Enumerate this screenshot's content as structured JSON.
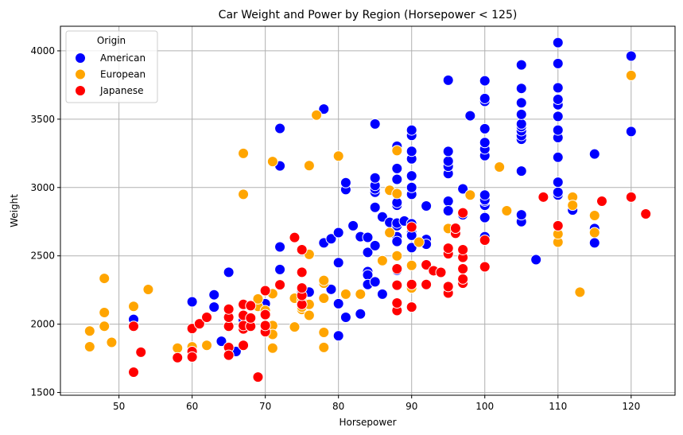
{
  "chart_data": {
    "type": "scatter",
    "title": "Car Weight and Power by Region (Horsepower < 125)",
    "xlabel": "Horsepower",
    "ylabel": "Weight",
    "xlim": [
      42,
      126
    ],
    "ylim": [
      1480,
      4180
    ],
    "xticks": [
      50,
      60,
      70,
      80,
      90,
      100,
      110,
      120
    ],
    "yticks": [
      1500,
      2000,
      2500,
      3000,
      3500,
      4000
    ],
    "grid": true,
    "legend": {
      "title": "Origin",
      "placement": "top-left"
    },
    "series": [
      {
        "name": "American",
        "color": "#0000ff",
        "points": [
          [
            52,
            2035
          ],
          [
            60,
            2164
          ],
          [
            63,
            2125
          ],
          [
            63,
            2215
          ],
          [
            64,
            1875
          ],
          [
            65,
            2380
          ],
          [
            65,
            2050
          ],
          [
            66,
            1800
          ],
          [
            67,
            2030
          ],
          [
            68,
            2045
          ],
          [
            70,
            2150
          ],
          [
            72,
            2565
          ],
          [
            72,
            2400
          ],
          [
            72,
            3158
          ],
          [
            72,
            3432
          ],
          [
            75,
            2230
          ],
          [
            76,
            2235
          ],
          [
            78,
            2595
          ],
          [
            78,
            3574
          ],
          [
            79,
            2625
          ],
          [
            79,
            2255
          ],
          [
            80,
            2150
          ],
          [
            80,
            2670
          ],
          [
            80,
            2450
          ],
          [
            80,
            1915
          ],
          [
            81,
            2050
          ],
          [
            81,
            2985
          ],
          [
            81,
            3035
          ],
          [
            82,
            2720
          ],
          [
            83,
            2075
          ],
          [
            83,
            2640
          ],
          [
            84,
            2525
          ],
          [
            84,
            2635
          ],
          [
            84,
            2385
          ],
          [
            84,
            2360
          ],
          [
            84,
            2290
          ],
          [
            85,
            2965
          ],
          [
            85,
            2990
          ],
          [
            85,
            3015
          ],
          [
            85,
            3070
          ],
          [
            85,
            3465
          ],
          [
            85,
            2855
          ],
          [
            85,
            2575
          ],
          [
            85,
            2310
          ],
          [
            86,
            2785
          ],
          [
            86,
            2220
          ],
          [
            87,
            2745
          ],
          [
            88,
            2720
          ],
          [
            88,
            2740
          ],
          [
            88,
            2870
          ],
          [
            88,
            3060
          ],
          [
            88,
            3139
          ],
          [
            88,
            3302
          ],
          [
            88,
            2640
          ],
          [
            88,
            2395
          ],
          [
            88,
            2605
          ],
          [
            88,
            2890
          ],
          [
            89,
            2755
          ],
          [
            90,
            2670
          ],
          [
            90,
            2735
          ],
          [
            90,
            2950
          ],
          [
            90,
            3000
          ],
          [
            90,
            3085
          ],
          [
            90,
            3210
          ],
          [
            90,
            3265
          ],
          [
            90,
            3381
          ],
          [
            90,
            3420
          ],
          [
            90,
            2650
          ],
          [
            90,
            2560
          ],
          [
            90,
            2735
          ],
          [
            92,
            2620
          ],
          [
            92,
            2585
          ],
          [
            92,
            2865
          ],
          [
            95,
            2900
          ],
          [
            95,
            3102
          ],
          [
            95,
            3155
          ],
          [
            95,
            3193
          ],
          [
            95,
            3264
          ],
          [
            95,
            2830
          ],
          [
            95,
            3785
          ],
          [
            97,
            2300
          ],
          [
            97,
            2990
          ],
          [
            97,
            2800
          ],
          [
            98,
            3525
          ],
          [
            100,
            2870
          ],
          [
            100,
            2900
          ],
          [
            100,
            2910
          ],
          [
            100,
            2945
          ],
          [
            100,
            3233
          ],
          [
            100,
            3282
          ],
          [
            100,
            3329
          ],
          [
            100,
            3430
          ],
          [
            100,
            3630
          ],
          [
            100,
            3651
          ],
          [
            100,
            3781
          ],
          [
            100,
            2640
          ],
          [
            100,
            2780
          ],
          [
            105,
            2750
          ],
          [
            105,
            2800
          ],
          [
            105,
            3120
          ],
          [
            105,
            3353
          ],
          [
            105,
            3380
          ],
          [
            105,
            3415
          ],
          [
            105,
            3445
          ],
          [
            105,
            3465
          ],
          [
            105,
            3535
          ],
          [
            105,
            3620
          ],
          [
            105,
            3725
          ],
          [
            105,
            3897
          ],
          [
            107,
            2472
          ],
          [
            110,
            2945
          ],
          [
            110,
            2965
          ],
          [
            110,
            3039
          ],
          [
            110,
            3221
          ],
          [
            110,
            3365
          ],
          [
            110,
            3420
          ],
          [
            110,
            3520
          ],
          [
            110,
            3605
          ],
          [
            110,
            3645
          ],
          [
            110,
            3730
          ],
          [
            110,
            3907
          ],
          [
            110,
            4060
          ],
          [
            112,
            2835
          ],
          [
            115,
            2595
          ],
          [
            115,
            2700
          ],
          [
            115,
            3245
          ],
          [
            120,
            3410
          ],
          [
            120,
            3962
          ]
        ]
      },
      {
        "name": "European",
        "color": "#ffa500",
        "points": [
          [
            46,
            1835
          ],
          [
            46,
            1950
          ],
          [
            48,
            2335
          ],
          [
            48,
            2085
          ],
          [
            48,
            1985
          ],
          [
            49,
            1867
          ],
          [
            52,
            2130
          ],
          [
            54,
            2254
          ],
          [
            58,
            1825
          ],
          [
            60,
            1834
          ],
          [
            62,
            1845
          ],
          [
            67,
            3250
          ],
          [
            67,
            2950
          ],
          [
            69,
            2130
          ],
          [
            69,
            2185
          ],
          [
            70,
            2100
          ],
          [
            71,
            2223
          ],
          [
            71,
            1990
          ],
          [
            71,
            1925
          ],
          [
            71,
            1825
          ],
          [
            71,
            3190
          ],
          [
            74,
            1980
          ],
          [
            74,
            2190
          ],
          [
            75,
            2108
          ],
          [
            75,
            2125
          ],
          [
            75,
            2171
          ],
          [
            76,
            2145
          ],
          [
            76,
            2065
          ],
          [
            76,
            2511
          ],
          [
            76,
            3160
          ],
          [
            77,
            3530
          ],
          [
            78,
            2190
          ],
          [
            78,
            2300
          ],
          [
            78,
            1940
          ],
          [
            78,
            1830
          ],
          [
            78,
            2320
          ],
          [
            80,
            3230
          ],
          [
            81,
            2220
          ],
          [
            83,
            2220
          ],
          [
            86,
            2465
          ],
          [
            87,
            2670
          ],
          [
            87,
            2980
          ],
          [
            88,
            2500
          ],
          [
            88,
            2955
          ],
          [
            88,
            3270
          ],
          [
            90,
            2265
          ],
          [
            90,
            2430
          ],
          [
            91,
            2600
          ],
          [
            95,
            2700
          ],
          [
            98,
            2945
          ],
          [
            102,
            3150
          ],
          [
            103,
            2830
          ],
          [
            110,
            2600
          ],
          [
            110,
            2660
          ],
          [
            112,
            2930
          ],
          [
            112,
            2870
          ],
          [
            113,
            2234
          ],
          [
            115,
            2670
          ],
          [
            115,
            2795
          ],
          [
            120,
            3820
          ]
        ]
      },
      {
        "name": "Japanese",
        "color": "#ff0000",
        "points": [
          [
            52,
            1649
          ],
          [
            52,
            1985
          ],
          [
            53,
            1795
          ],
          [
            58,
            1755
          ],
          [
            60,
            1800
          ],
          [
            60,
            1760
          ],
          [
            60,
            1968
          ],
          [
            61,
            2003
          ],
          [
            62,
            2050
          ],
          [
            65,
            1985
          ],
          [
            65,
            1830
          ],
          [
            65,
            1773
          ],
          [
            65,
            2050
          ],
          [
            65,
            2110
          ],
          [
            67,
            1845
          ],
          [
            67,
            1965
          ],
          [
            67,
            1990
          ],
          [
            67,
            2065
          ],
          [
            67,
            2145
          ],
          [
            68,
            1985
          ],
          [
            68,
            2045
          ],
          [
            68,
            2135
          ],
          [
            69,
            1613
          ],
          [
            70,
            1945
          ],
          [
            70,
            1990
          ],
          [
            70,
            2070
          ],
          [
            70,
            2245
          ],
          [
            72,
            2288
          ],
          [
            74,
            2634
          ],
          [
            75,
            2145
          ],
          [
            75,
            2210
          ],
          [
            75,
            2265
          ],
          [
            75,
            2545
          ],
          [
            75,
            2380
          ],
          [
            88,
            2100
          ],
          [
            88,
            2155
          ],
          [
            88,
            2285
          ],
          [
            88,
            2405
          ],
          [
            90,
            2125
          ],
          [
            90,
            2290
          ],
          [
            90,
            2711
          ],
          [
            92,
            2434
          ],
          [
            92,
            2290
          ],
          [
            93,
            2391
          ],
          [
            94,
            2379
          ],
          [
            95,
            2228
          ],
          [
            95,
            2515
          ],
          [
            95,
            2556
          ],
          [
            95,
            2275
          ],
          [
            96,
            2665
          ],
          [
            96,
            2702
          ],
          [
            97,
            2300
          ],
          [
            97,
            2330
          ],
          [
            97,
            2405
          ],
          [
            97,
            2489
          ],
          [
            97,
            2545
          ],
          [
            97,
            2815
          ],
          [
            100,
            2420
          ],
          [
            100,
            2615
          ],
          [
            108,
            2930
          ],
          [
            110,
            2720
          ],
          [
            116,
            2900
          ],
          [
            120,
            2930
          ],
          [
            122,
            2807
          ]
        ]
      }
    ]
  }
}
